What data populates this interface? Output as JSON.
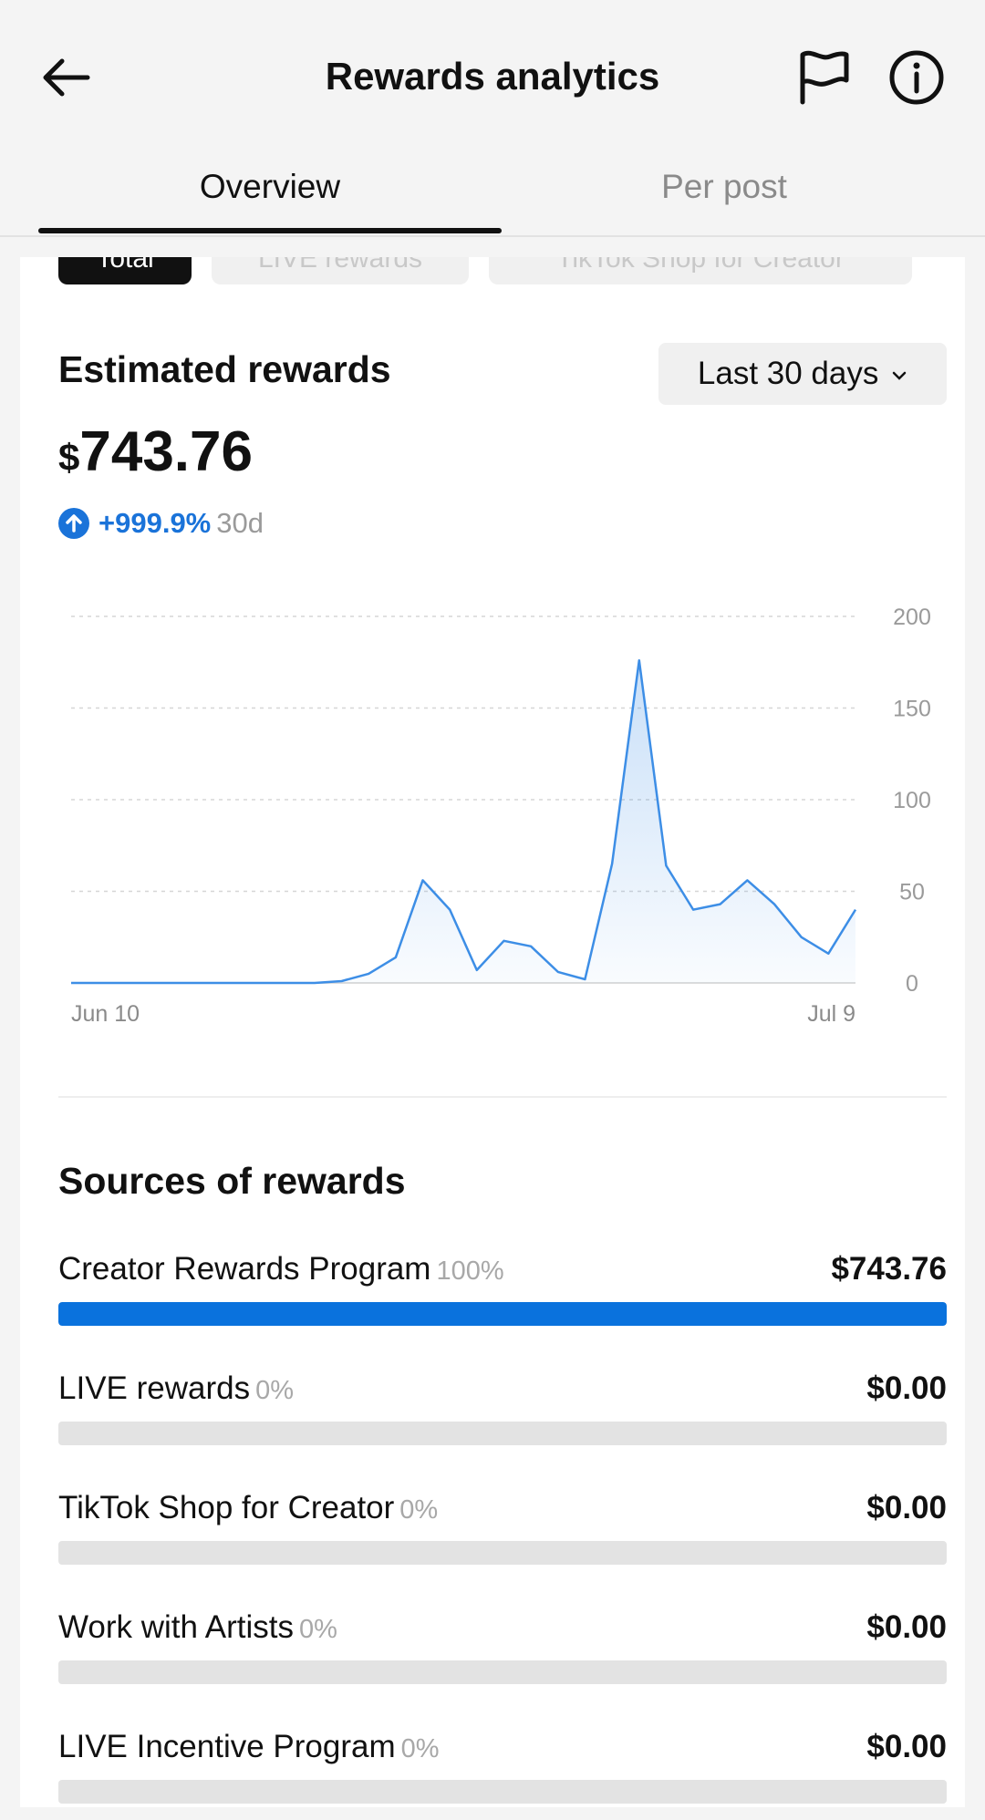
{
  "header": {
    "title": "Rewards analytics",
    "back_icon": "back-arrow-icon",
    "flag_icon": "flag-icon",
    "info_icon": "info-icon"
  },
  "tabs": [
    {
      "label": "Overview",
      "active": true
    },
    {
      "label": "Per post",
      "active": false
    }
  ],
  "filter_chips": [
    {
      "label": "Total",
      "active": true
    },
    {
      "label": "LIVE rewards",
      "active": false
    },
    {
      "label": "TikTok Shop for Creator",
      "active": false
    }
  ],
  "summary": {
    "label": "Estimated rewards",
    "range_label": "Last 30 days",
    "currency": "$",
    "amount": "743.76",
    "growth": "+999.9%",
    "growth_period": "30d"
  },
  "chart_data": {
    "type": "area",
    "x_start_label": "Jun 10",
    "x_end_label": "Jul 9",
    "y_ticks": [
      "200",
      "150",
      "100",
      "50",
      "0"
    ],
    "ylim": [
      0,
      200
    ],
    "grid": true,
    "color": "#3d8ee6",
    "values": [
      0,
      0,
      0,
      0,
      0,
      0,
      0,
      0,
      0,
      0,
      1,
      5,
      14,
      56,
      40,
      7,
      23,
      20,
      6,
      2,
      65,
      176,
      64,
      40,
      43,
      56,
      43,
      25,
      16,
      40
    ]
  },
  "sources": {
    "title": "Sources of rewards",
    "items": [
      {
        "label": "Creator Rewards Program",
        "pct": "100%",
        "amount": "$743.76",
        "fraction": 1.0
      },
      {
        "label": "LIVE rewards",
        "pct": "0%",
        "amount": "$0.00",
        "fraction": 0
      },
      {
        "label": "TikTok Shop for Creator",
        "pct": "0%",
        "amount": "$0.00",
        "fraction": 0
      },
      {
        "label": "Work with Artists",
        "pct": "0%",
        "amount": "$0.00",
        "fraction": 0
      },
      {
        "label": "LIVE Incentive Program",
        "pct": "0%",
        "amount": "$0.00",
        "fraction": 0
      }
    ]
  },
  "colors": {
    "accent": "#0a72dd",
    "growth": "#1a73d9",
    "bar_empty": "#e3e3e3"
  }
}
